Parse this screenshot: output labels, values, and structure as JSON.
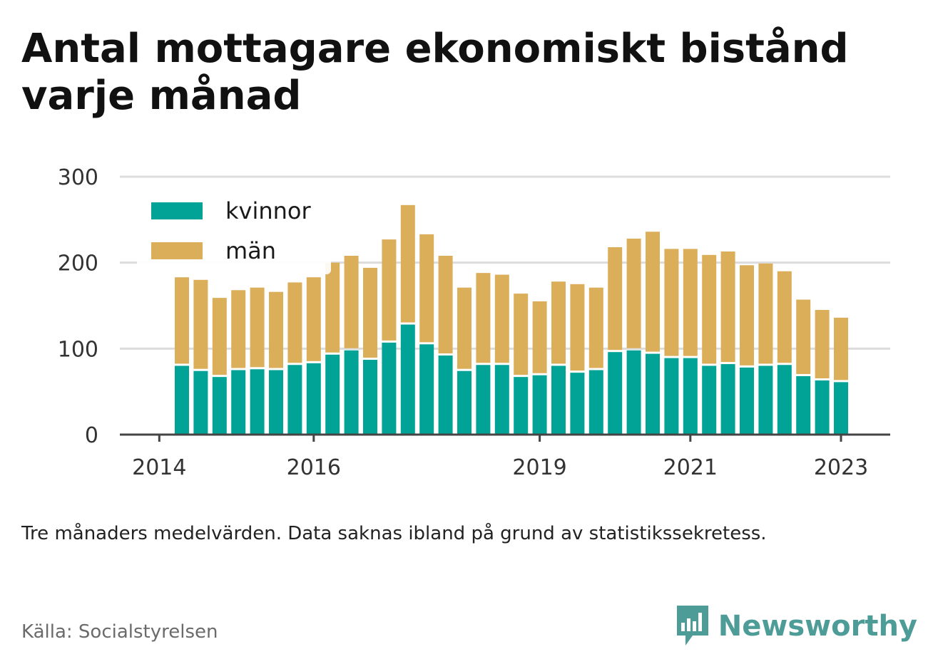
{
  "title": "Antal mottagare ekonomiskt bistånd varje månad",
  "note": "Tre månaders medelvärden. Data saknas ibland på grund av statistikssekretess.",
  "source": "Källa: Socialstyrelsen",
  "brand": {
    "name": "Newsworthy",
    "icon": "bar-chart-speech-bubble-icon"
  },
  "colors": {
    "kvinnor": "#00a395",
    "man": "#dbae5a",
    "grid": "#dcdcdc",
    "axis": "#444444",
    "brand": "#4d9c98"
  },
  "chart_data": {
    "type": "bar",
    "stacked": true,
    "ylim": [
      0,
      300
    ],
    "yticks": [
      0,
      100,
      200,
      300
    ],
    "grid": true,
    "legend_position": "top-left",
    "x_tick_labels": [
      "2014",
      "2016",
      "2019",
      "2021",
      "2023"
    ],
    "x_tick_bar_index": [
      -1.2,
      7,
      19,
      27,
      35
    ],
    "series": [
      {
        "name": "kvinnor",
        "values": [
          80,
          74,
          67,
          75,
          76,
          75,
          81,
          83,
          93,
          98,
          87,
          107,
          128,
          105,
          92,
          74,
          81,
          81,
          67,
          69,
          80,
          72,
          75,
          96,
          98,
          94,
          89,
          89,
          80,
          82,
          78,
          80,
          81,
          68,
          63,
          61
        ]
      },
      {
        "name": "män",
        "values": [
          103,
          106,
          92,
          93,
          95,
          91,
          96,
          100,
          107,
          110,
          107,
          120,
          139,
          128,
          116,
          97,
          107,
          105,
          97,
          86,
          98,
          103,
          96,
          122,
          130,
          142,
          127,
          127,
          129,
          131,
          119,
          119,
          109,
          89,
          82,
          75
        ]
      }
    ]
  }
}
